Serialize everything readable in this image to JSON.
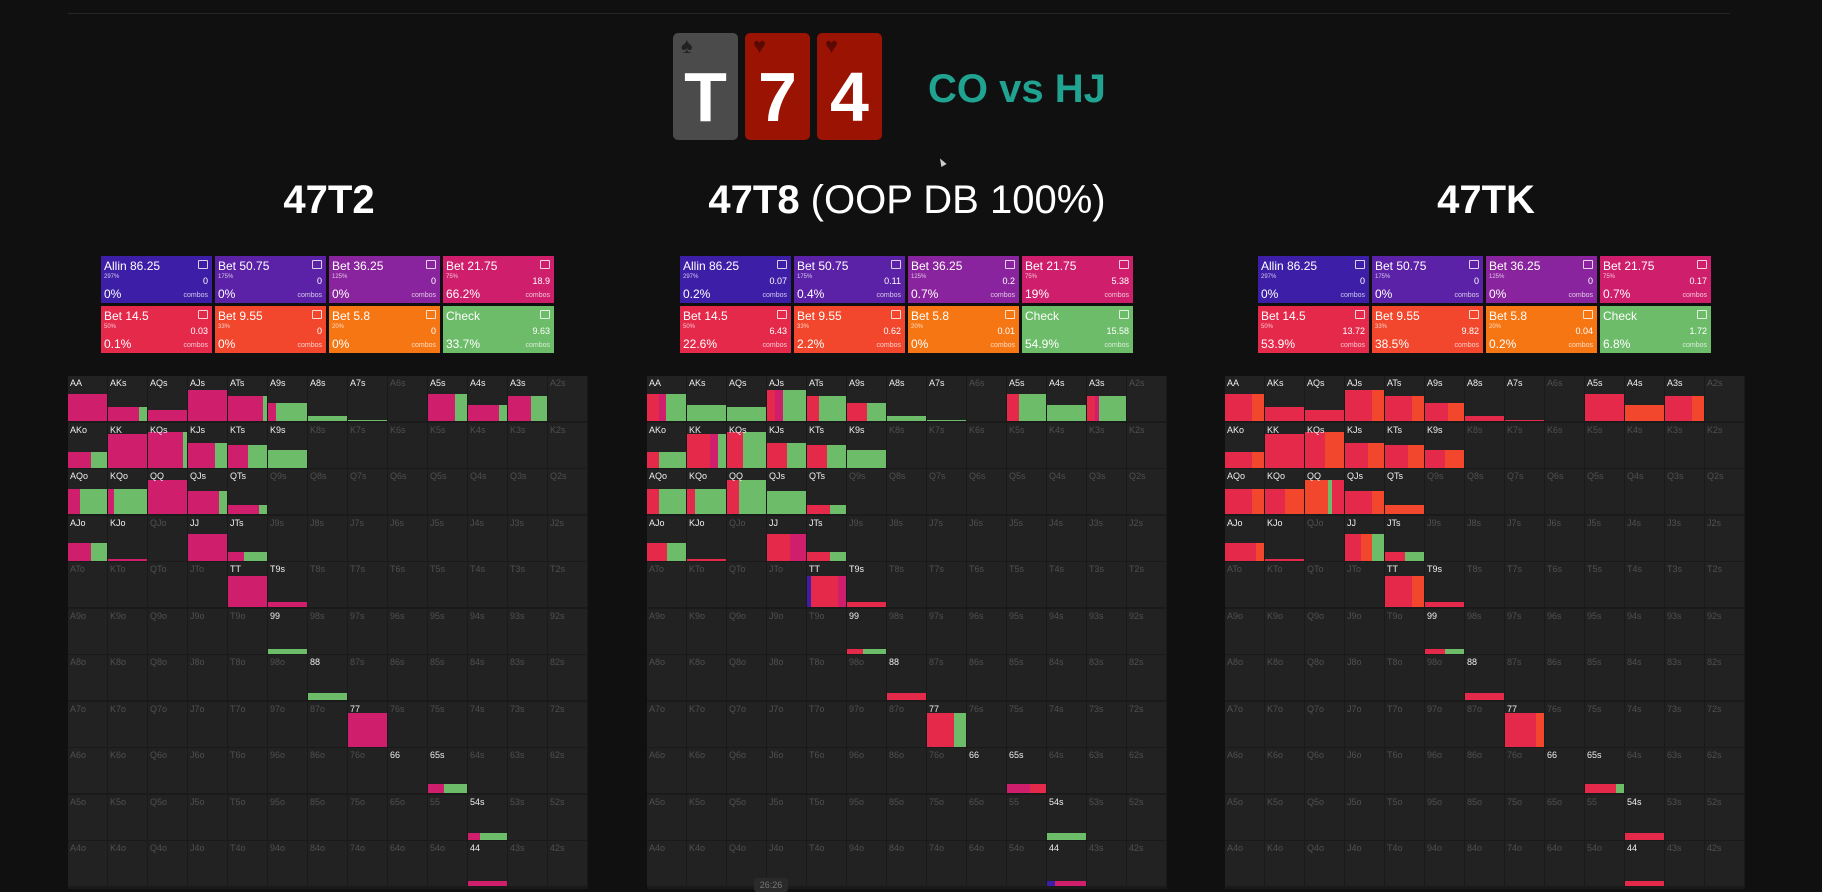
{
  "colors": {
    "allin": "#3d1fa7",
    "bet5075": "#5b22a8",
    "bet3625": "#8a249e",
    "bet2175": "#cf1e6c",
    "bet145": "#e5294b",
    "bet955": "#f2472c",
    "bet58": "#f77614",
    "check": "#6dbc6a",
    "card_spade": "#4b4b4b",
    "card_heart": "#9b1303"
  },
  "header": {
    "cards": [
      {
        "rank": "T",
        "suit": "♠",
        "suit_name": "spade-icon",
        "color": "#4b4b4b"
      },
      {
        "rank": "7",
        "suit": "♥",
        "suit_name": "heart-icon",
        "color": "#9b1303"
      },
      {
        "rank": "4",
        "suit": "♥",
        "suit_name": "heart-icon",
        "color": "#9b1303"
      }
    ],
    "matchup": "CO vs HJ"
  },
  "panels": [
    {
      "title": "47T2",
      "title_suffix": "",
      "actions": [
        {
          "name": "Allin 86.25",
          "size": "297%",
          "combos": "0",
          "pct": "0%"
        },
        {
          "name": "Bet 50.75",
          "size": "175%",
          "combos": "0",
          "pct": "0%"
        },
        {
          "name": "Bet 36.25",
          "size": "125%",
          "combos": "0",
          "pct": "0%"
        },
        {
          "name": "Bet 21.75",
          "size": "75%",
          "combos": "18.9",
          "pct": "66.2%"
        },
        {
          "name": "Bet 14.5",
          "size": "50%",
          "combos": "0.03",
          "pct": "0.1%"
        },
        {
          "name": "Bet 9.55",
          "size": "33%",
          "combos": "0",
          "pct": "0%"
        },
        {
          "name": "Bet 5.8",
          "size": "20%",
          "combos": "0",
          "pct": "0%"
        },
        {
          "name": "Check",
          "size": "",
          "combos": "9.63",
          "pct": "33.7%"
        }
      ],
      "combos_label": "combos"
    },
    {
      "title": "47T8",
      "title_suffix": " (OOP DB 100%)",
      "actions": [
        {
          "name": "Allin 86.25",
          "size": "297%",
          "combos": "0.07",
          "pct": "0.2%"
        },
        {
          "name": "Bet 50.75",
          "size": "175%",
          "combos": "0.11",
          "pct": "0.4%"
        },
        {
          "name": "Bet 36.25",
          "size": "125%",
          "combos": "0.2",
          "pct": "0.7%"
        },
        {
          "name": "Bet 21.75",
          "size": "75%",
          "combos": "5.38",
          "pct": "19%"
        },
        {
          "name": "Bet 14.5",
          "size": "50%",
          "combos": "6.43",
          "pct": "22.6%"
        },
        {
          "name": "Bet 9.55",
          "size": "33%",
          "combos": "0.62",
          "pct": "2.2%"
        },
        {
          "name": "Bet 5.8",
          "size": "20%",
          "combos": "0.01",
          "pct": "0%"
        },
        {
          "name": "Check",
          "size": "",
          "combos": "15.58",
          "pct": "54.9%"
        }
      ],
      "combos_label": "combos"
    },
    {
      "title": "47TK",
      "title_suffix": "",
      "actions": [
        {
          "name": "Allin 86.25",
          "size": "297%",
          "combos": "0",
          "pct": "0%"
        },
        {
          "name": "Bet 50.75",
          "size": "175%",
          "combos": "0",
          "pct": "0%"
        },
        {
          "name": "Bet 36.25",
          "size": "125%",
          "combos": "0",
          "pct": "0%"
        },
        {
          "name": "Bet 21.75",
          "size": "75%",
          "combos": "0.17",
          "pct": "0.7%"
        },
        {
          "name": "Bet 14.5",
          "size": "50%",
          "combos": "13.72",
          "pct": "53.9%"
        },
        {
          "name": "Bet 9.55",
          "size": "33%",
          "combos": "9.82",
          "pct": "38.5%"
        },
        {
          "name": "Bet 5.8",
          "size": "20%",
          "combos": "0.04",
          "pct": "0.2%"
        },
        {
          "name": "Check",
          "size": "",
          "combos": "1.72",
          "pct": "6.8%"
        }
      ],
      "combos_label": "combos"
    }
  ],
  "range_hands": {
    "labels": [
      [
        "AA",
        "AKs",
        "AQs",
        "AJs",
        "ATs",
        "A9s",
        "A8s",
        "A7s",
        "A6s",
        "A5s",
        "A4s",
        "A3s",
        "A2s"
      ],
      [
        "AKo",
        "KK",
        "KQs",
        "KJs",
        "KTs",
        "K9s",
        "K8s",
        "K7s",
        "K6s",
        "K5s",
        "K4s",
        "K3s",
        "K2s"
      ],
      [
        "AQo",
        "KQo",
        "QQ",
        "QJs",
        "QTs",
        "Q9s",
        "Q8s",
        "Q7s",
        "Q6s",
        "Q5s",
        "Q4s",
        "Q3s",
        "Q2s"
      ],
      [
        "AJo",
        "KJo",
        "QJo",
        "JJ",
        "JTs",
        "J9s",
        "J8s",
        "J7s",
        "J6s",
        "J5s",
        "J4s",
        "J3s",
        "J2s"
      ],
      [
        "ATo",
        "KTo",
        "QTo",
        "JTo",
        "TT",
        "T9s",
        "T8s",
        "T7s",
        "T6s",
        "T5s",
        "T4s",
        "T3s",
        "T2s"
      ],
      [
        "A9o",
        "K9o",
        "Q9o",
        "J9o",
        "T9o",
        "99",
        "98s",
        "97s",
        "96s",
        "95s",
        "94s",
        "93s",
        "92s"
      ],
      [
        "A8o",
        "K8o",
        "Q8o",
        "J8o",
        "T8o",
        "98o",
        "88",
        "87s",
        "86s",
        "85s",
        "84s",
        "83s",
        "82s"
      ],
      [
        "A7o",
        "K7o",
        "Q7o",
        "J7o",
        "T7o",
        "97o",
        "87o",
        "77",
        "76s",
        "75s",
        "74s",
        "73s",
        "72s"
      ],
      [
        "A6o",
        "K6o",
        "Q6o",
        "J6o",
        "T6o",
        "96o",
        "86o",
        "76o",
        "66",
        "65s",
        "64s",
        "63s",
        "62s"
      ],
      [
        "A5o",
        "K5o",
        "Q5o",
        "J5o",
        "T5o",
        "95o",
        "85o",
        "75o",
        "65o",
        "55",
        "54s",
        "53s",
        "52s"
      ],
      [
        "A4o",
        "K4o",
        "Q4o",
        "J4o",
        "T4o",
        "94o",
        "84o",
        "74o",
        "64o",
        "54o",
        "44",
        "43s",
        "42s"
      ]
    ],
    "active_labels": [
      "AA",
      "AKs",
      "AQs",
      "AJs",
      "ATs",
      "A9s",
      "A8s",
      "A7s",
      "A5s",
      "A4s",
      "A3s",
      "AKo",
      "KK",
      "KQs",
      "KJs",
      "KTs",
      "K9s",
      "AQo",
      "KQo",
      "QQ",
      "QJs",
      "QTs",
      "AJo",
      "KJo",
      "JJ",
      "JTs",
      "TT",
      "T9s",
      "99",
      "88",
      "77",
      "66",
      "65s",
      "54s",
      "44"
    ]
  },
  "timestamp": "26:26"
}
